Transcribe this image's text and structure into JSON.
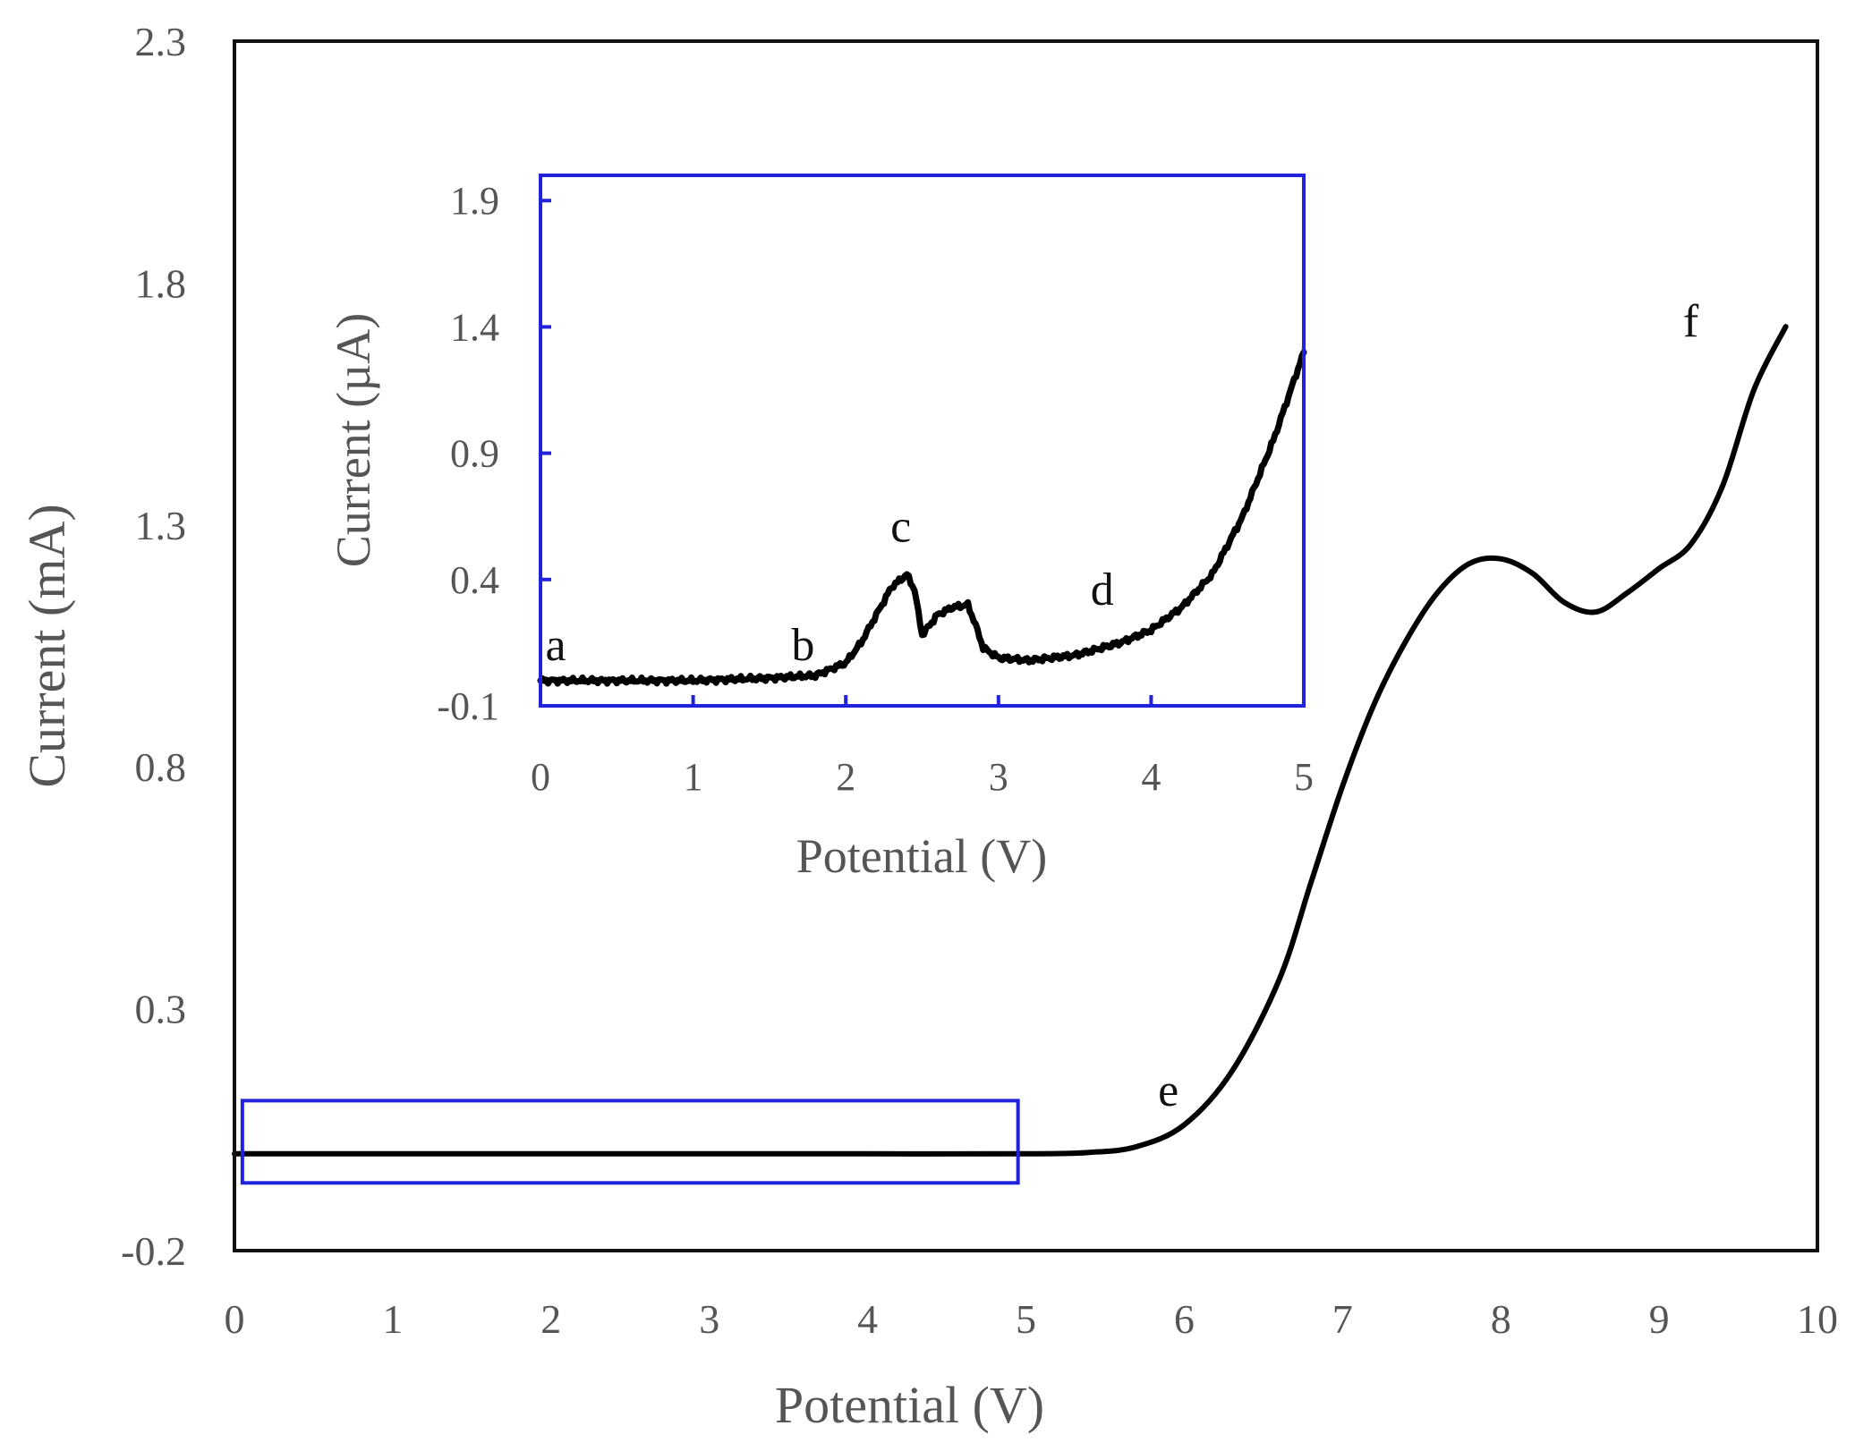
{
  "chart_data": [
    {
      "id": "main",
      "type": "line",
      "xlabel": "Potential (V)",
      "ylabel": "Current (mA)",
      "xlim": [
        0,
        10
      ],
      "ylim": [
        -0.2,
        2.3
      ],
      "xticks": [
        "0",
        "1",
        "2",
        "3",
        "4",
        "5",
        "6",
        "7",
        "8",
        "9",
        "10"
      ],
      "yticks": [
        "2.3",
        "1.8",
        "1.3",
        "0.8",
        "0.3",
        "-0.2"
      ],
      "series": [
        {
          "name": "main-curve",
          "color": "#000000",
          "x": [
            0,
            1,
            2,
            3,
            4,
            5,
            5.4,
            5.7,
            6.0,
            6.3,
            6.6,
            6.8,
            7.0,
            7.2,
            7.4,
            7.6,
            7.8,
            8.0,
            8.2,
            8.4,
            8.6,
            8.8,
            9.0,
            9.2,
            9.4,
            9.6,
            9.8
          ],
          "y": [
            0.0,
            0.0,
            0.0,
            0.0,
            0.0,
            0.0,
            0.003,
            0.015,
            0.06,
            0.17,
            0.36,
            0.56,
            0.76,
            0.93,
            1.06,
            1.16,
            1.22,
            1.23,
            1.2,
            1.14,
            1.12,
            1.16,
            1.21,
            1.26,
            1.38,
            1.58,
            1.71
          ]
        }
      ],
      "annotations": [
        {
          "label": "e",
          "x": 5.9,
          "y": 0.1
        },
        {
          "label": "f",
          "x": 9.2,
          "y": 1.69
        }
      ],
      "highlight_box": {
        "x_range": [
          0.05,
          4.95
        ],
        "y_range": [
          -0.06,
          0.11
        ],
        "color": "#2222dd"
      }
    },
    {
      "id": "inset",
      "type": "line",
      "xlabel": "Potential (V)",
      "ylabel": "Current (µA)",
      "xlim": [
        0,
        5
      ],
      "ylim": [
        -0.1,
        2.0
      ],
      "xticks": [
        "0",
        "1",
        "2",
        "3",
        "4",
        "5"
      ],
      "yticks": [
        "1.9",
        "1.4",
        "0.9",
        "0.4",
        "-0.1"
      ],
      "frame_color": "#2222dd",
      "series": [
        {
          "name": "inset-curve",
          "color": "#000000",
          "x": [
            0,
            0.5,
            1.0,
            1.5,
            1.8,
            2.0,
            2.1,
            2.2,
            2.3,
            2.4,
            2.45,
            2.5,
            2.55,
            2.6,
            2.7,
            2.8,
            2.85,
            2.9,
            3.0,
            3.2,
            3.5,
            3.8,
            4.0,
            4.2,
            4.4,
            4.6,
            4.8,
            5.0
          ],
          "y": [
            0.0,
            0.0,
            0.0,
            0.01,
            0.02,
            0.07,
            0.15,
            0.26,
            0.37,
            0.42,
            0.36,
            0.18,
            0.22,
            0.26,
            0.29,
            0.3,
            0.22,
            0.13,
            0.09,
            0.08,
            0.1,
            0.15,
            0.2,
            0.29,
            0.42,
            0.65,
            0.95,
            1.3
          ]
        }
      ],
      "annotations": [
        {
          "label": "a",
          "x": 0.1,
          "y": 0.08
        },
        {
          "label": "b",
          "x": 1.72,
          "y": 0.08
        },
        {
          "label": "c",
          "x": 2.36,
          "y": 0.55
        },
        {
          "label": "d",
          "x": 3.68,
          "y": 0.3
        }
      ]
    }
  ]
}
